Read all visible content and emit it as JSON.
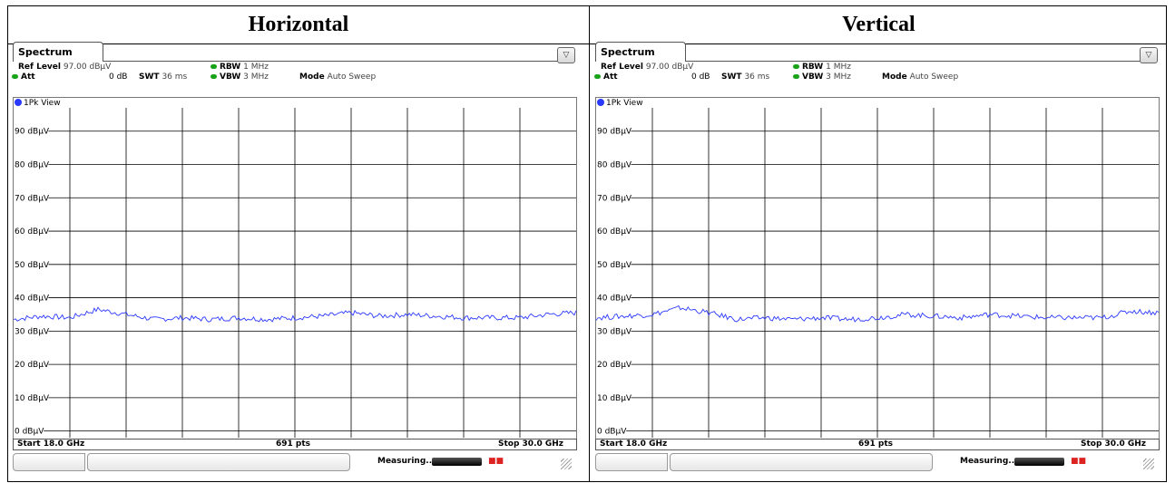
{
  "columns": [
    {
      "title": "Horizontal",
      "tab": "Spectrum",
      "ref_level_label": "Ref Level",
      "ref_level_value": "97.00 dBµV",
      "att_label": "Att",
      "att_value": "0 dB",
      "swt_label": "SWT",
      "swt_value": "36 ms",
      "rbw_label": "RBW",
      "rbw_value": "1 MHz",
      "vbw_label": "VBW",
      "vbw_value": "3 MHz",
      "mode_label": "Mode",
      "mode_value": "Auto Sweep",
      "trace_label": "1Pk View",
      "footer_start": "Start 18.0 GHz",
      "footer_pts": "691 pts",
      "footer_stop": "Stop 30.0 GHz",
      "status_text": "Measuring..."
    },
    {
      "title": "Vertical",
      "tab": "Spectrum",
      "ref_level_label": "Ref Level",
      "ref_level_value": "97.00 dBµV",
      "att_label": "Att",
      "att_value": "0 dB",
      "swt_label": "SWT",
      "swt_value": "36 ms",
      "rbw_label": "RBW",
      "rbw_value": "1 MHz",
      "vbw_label": "VBW",
      "vbw_value": "3 MHz",
      "mode_label": "Mode",
      "mode_value": "Auto Sweep",
      "trace_label": "1Pk View",
      "footer_start": "Start 18.0 GHz",
      "footer_pts": "691 pts",
      "footer_stop": "Stop 30.0 GHz",
      "status_text": "Measuring..."
    }
  ],
  "colors": {
    "trace": "#2a39ff",
    "grid": "#000000",
    "indicator": "#19a319"
  },
  "chart_data": [
    {
      "type": "line",
      "title": "Horizontal",
      "xlabel": "",
      "ylabel": "",
      "xlim": [
        18.0,
        30.0
      ],
      "ylim": [
        -2,
        97
      ],
      "x_unit": "GHz",
      "y_ticks": [
        0,
        10,
        20,
        30,
        40,
        50,
        60,
        70,
        80,
        90
      ],
      "y_tick_labels": [
        "0 dBµV",
        "10 dBµV",
        "20 dBµV",
        "30 dBµV",
        "40 dBµV",
        "50 dBµV",
        "60 dBµV",
        "70 dBµV",
        "80 dBµV",
        "90 dBµV"
      ],
      "x_divisions": 10,
      "grid": true,
      "series": [
        {
          "x": [
            18.0,
            18.6,
            19.2,
            19.8,
            20.4,
            21.0,
            21.6,
            22.2,
            22.8,
            23.4,
            24.0,
            24.6,
            25.2,
            25.8,
            26.4,
            27.0,
            27.6,
            28.2,
            28.8,
            29.4,
            30.0
          ],
          "y": [
            33.5,
            34.5,
            34.0,
            36.5,
            35.0,
            33.5,
            34.0,
            33.5,
            34.0,
            33.5,
            34.0,
            34.5,
            35.5,
            34.5,
            35.0,
            34.5,
            34.0,
            34.0,
            34.0,
            35.0,
            35.5
          ]
        }
      ]
    },
    {
      "type": "line",
      "title": "Vertical",
      "xlabel": "",
      "ylabel": "",
      "xlim": [
        18.0,
        30.0
      ],
      "ylim": [
        -2,
        97
      ],
      "x_unit": "GHz",
      "y_ticks": [
        0,
        10,
        20,
        30,
        40,
        50,
        60,
        70,
        80,
        90
      ],
      "y_tick_labels": [
        "0 dBµV",
        "10 dBµV",
        "20 dBµV",
        "30 dBµV",
        "40 dBµV",
        "50 dBµV",
        "60 dBµV",
        "70 dBµV",
        "80 dBµV",
        "90 dBµV"
      ],
      "x_divisions": 10,
      "grid": true,
      "series": [
        {
          "x": [
            18.0,
            18.6,
            19.2,
            19.8,
            20.4,
            21.0,
            21.6,
            22.2,
            22.8,
            23.4,
            24.0,
            24.6,
            25.2,
            25.8,
            26.4,
            27.0,
            27.6,
            28.2,
            28.8,
            29.4,
            30.0
          ],
          "y": [
            34.0,
            34.5,
            35.0,
            37.0,
            35.5,
            33.5,
            34.0,
            33.5,
            34.0,
            33.5,
            34.0,
            35.0,
            34.5,
            34.0,
            35.0,
            34.5,
            34.0,
            34.0,
            34.0,
            36.0,
            35.5
          ]
        }
      ]
    }
  ]
}
